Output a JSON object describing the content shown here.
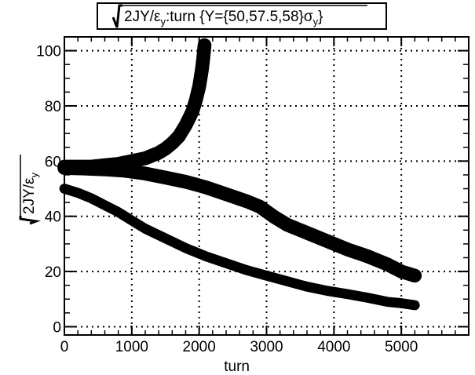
{
  "chart_data": {
    "type": "scatter",
    "title": "√2JY/ε_y:turn {Y={50,57.5,58}σ_y}",
    "title_parts": {
      "main": "2JY/ε",
      "sub": "y",
      "mid": ":turn {Y={50,57.5,58}σ",
      "sub2": "y",
      "end": "}"
    },
    "xlabel": "turn",
    "ylabel_parts": {
      "main": "2JY/ε",
      "sub": "y"
    },
    "xlim": [
      0,
      6000
    ],
    "ylim": [
      -3,
      105
    ],
    "x_ticks": [
      0,
      1000,
      2000,
      3000,
      4000,
      5000
    ],
    "x_tick_labels": [
      "0",
      "1000",
      "2000",
      "3000",
      "4000",
      "5000"
    ],
    "y_ticks": [
      0,
      20,
      40,
      60,
      80,
      100
    ],
    "y_tick_labels": [
      "0",
      "20",
      "40",
      "60",
      "80",
      "100"
    ],
    "grid": true,
    "series": [
      {
        "points": [
          [
            0,
            58
          ],
          [
            200,
            58
          ],
          [
            400,
            58
          ],
          [
            600,
            58.5
          ],
          [
            800,
            59
          ],
          [
            1000,
            60
          ],
          [
            1200,
            61
          ],
          [
            1400,
            63
          ],
          [
            1500,
            64.5
          ],
          [
            1600,
            66.5
          ],
          [
            1700,
            69
          ],
          [
            1800,
            73
          ],
          [
            1900,
            78
          ],
          [
            1950,
            82
          ],
          [
            2000,
            87
          ],
          [
            2040,
            93
          ],
          [
            2060,
            97
          ],
          [
            2080,
            102
          ]
        ],
        "band": 2.5
      },
      {
        "points": [
          [
            0,
            57.5
          ],
          [
            300,
            57.3
          ],
          [
            600,
            57
          ],
          [
            900,
            56.5
          ],
          [
            1200,
            55.5
          ],
          [
            1500,
            54
          ],
          [
            1800,
            52.5
          ],
          [
            2100,
            50.5
          ],
          [
            2400,
            48
          ],
          [
            2700,
            45.5
          ],
          [
            2900,
            43.5
          ],
          [
            3100,
            40
          ],
          [
            3300,
            37
          ],
          [
            3600,
            34
          ],
          [
            3900,
            31
          ],
          [
            4200,
            28
          ],
          [
            4500,
            25.5
          ],
          [
            4800,
            22.5
          ],
          [
            5000,
            20
          ],
          [
            5200,
            18.5
          ]
        ],
        "band": 2.5
      },
      {
        "points": [
          [
            0,
            50
          ],
          [
            200,
            48.5
          ],
          [
            400,
            46.5
          ],
          [
            600,
            44
          ],
          [
            800,
            41.5
          ],
          [
            1000,
            38.5
          ],
          [
            1200,
            35.5
          ],
          [
            1500,
            32
          ],
          [
            1800,
            28.5
          ],
          [
            2100,
            25.5
          ],
          [
            2400,
            23
          ],
          [
            2700,
            20.5
          ],
          [
            3000,
            18.5
          ],
          [
            3300,
            16.5
          ],
          [
            3600,
            14.5
          ],
          [
            3900,
            13
          ],
          [
            4200,
            11.8
          ],
          [
            4500,
            10.5
          ],
          [
            4800,
            9
          ],
          [
            5000,
            8.5
          ],
          [
            5200,
            7.8
          ]
        ],
        "band": 1.8
      }
    ]
  }
}
